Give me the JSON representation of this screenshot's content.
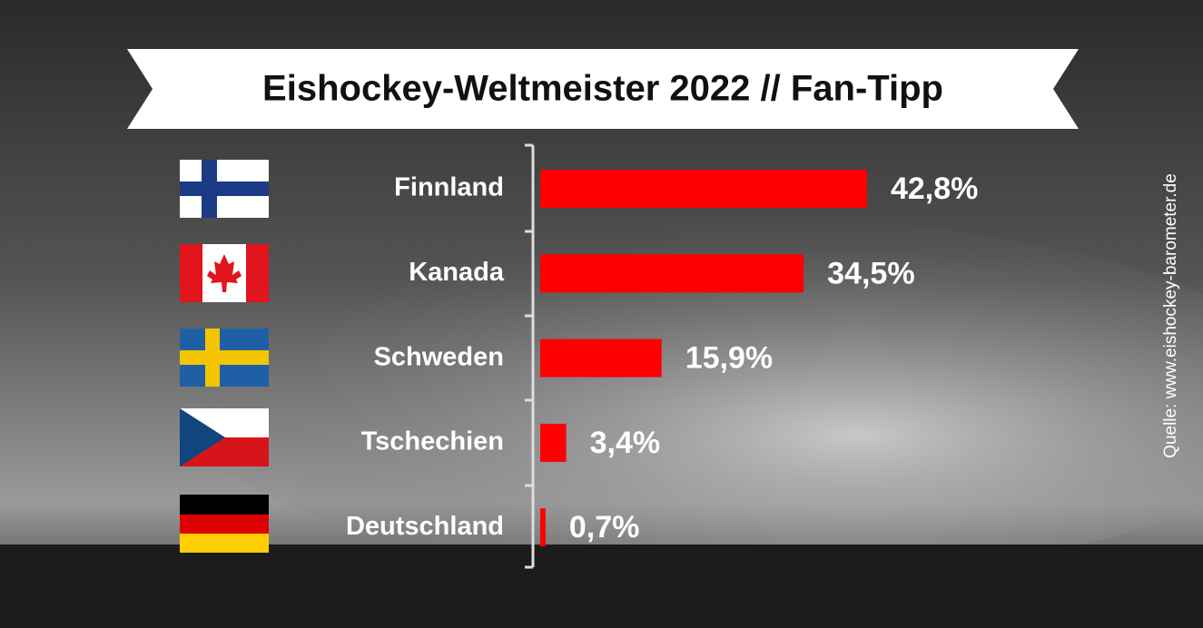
{
  "chart_data": {
    "type": "bar",
    "title": "Eishockey-Weltmeister 2022 // Fan-Tipp",
    "categories": [
      "Finnland",
      "Kanada",
      "Schweden",
      "Tschechien",
      "Deutschland"
    ],
    "values": [
      42.8,
      34.5,
      15.9,
      3.4,
      0.7
    ],
    "value_labels": [
      "42,8%",
      "34,5%",
      "15,9%",
      "3,4%",
      "0,7%"
    ],
    "color": "#ff0000",
    "source": "Quelle: www.eishockey-barometer.de"
  }
}
